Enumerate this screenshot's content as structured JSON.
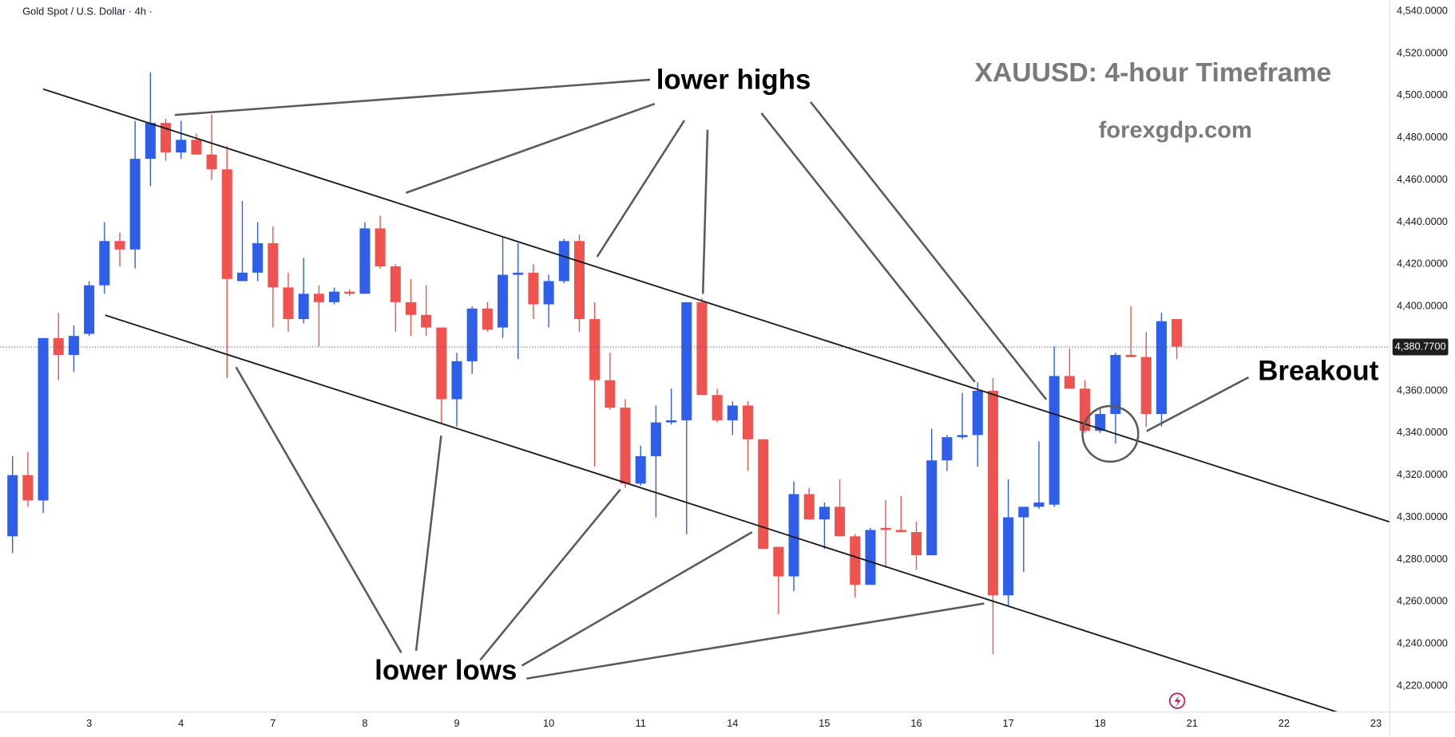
{
  "chart_data": {
    "type": "candlestick",
    "title": "XAUUSD: 4-hour Timeframe",
    "subtitle": "forexgdp.com",
    "symbol": "Gold Spot / U.S. Dollar · 4h ·",
    "annotations": [
      "lower highs",
      "lower lows",
      "Breakout"
    ],
    "up_color": "#2f5ee8",
    "down_color": "#ef5350",
    "grid": false,
    "open": [
      4291,
      4320,
      4308,
      4385,
      4377,
      4387,
      4410,
      4431,
      4427,
      4470,
      4487,
      4473,
      4479,
      4472,
      4465,
      4412,
      4416,
      4430,
      4409,
      4394,
      4406,
      4402,
      4407,
      4406,
      4437,
      4419,
      4402,
      4396,
      4390,
      4356,
      4374,
      4399,
      4390,
      4415,
      4416,
      4401,
      4412,
      4431,
      4394,
      4365,
      4352,
      4316,
      4329,
      4345,
      4346,
      4402,
      4358,
      4346,
      4353,
      4337,
      4286,
      4272,
      4311,
      4299,
      4305,
      4291,
      4268,
      4295,
      4294,
      4293,
      4282,
      4327,
      4338,
      4339,
      4360,
      4263,
      4300,
      4305,
      4306,
      4367,
      4361,
      4341,
      4349,
      4377,
      4376,
      4349,
      4394
    ],
    "high": [
      4329,
      4331,
      4385,
      4397,
      4391,
      4412,
      4440,
      4435,
      4488,
      4511,
      4489,
      4488,
      4482,
      4491,
      4476,
      4450,
      4440,
      4438,
      4416,
      4423,
      4410,
      4409,
      4408,
      4440,
      4443,
      4420,
      4413,
      4410,
      4390,
      4378,
      4400,
      4402,
      4433,
      4430,
      4420,
      4415,
      4432,
      4434,
      4402,
      4378,
      4356,
      4334,
      4353,
      4361,
      4402,
      4404,
      4361,
      4355,
      4355,
      4337,
      4286,
      4317,
      4314,
      4307,
      4318,
      4292,
      4295,
      4308,
      4310,
      4298,
      4342,
      4339,
      4359,
      4364,
      4366,
      4318,
      4305,
      4336,
      4381,
      4380,
      4365,
      4352,
      4378,
      4400,
      4388,
      4397,
      4394
    ],
    "low": [
      4283,
      4305,
      4302,
      4365,
      4369,
      4386,
      4406,
      4419,
      4418,
      4457,
      4469,
      4470,
      4472,
      4460,
      4366,
      4412,
      4412,
      4390,
      4388,
      4392,
      4381,
      4401,
      4405,
      4406,
      4418,
      4388,
      4386,
      4386,
      4344,
      4343,
      4368,
      4388,
      4385,
      4375,
      4394,
      4390,
      4411,
      4388,
      4324,
      4351,
      4314,
      4315,
      4300,
      4344,
      4292,
      4358,
      4345,
      4339,
      4322,
      4285,
      4254,
      4265,
      4299,
      4285,
      4291,
      4262,
      4268,
      4276,
      4293,
      4275,
      4282,
      4322,
      4337,
      4324,
      4235,
      4258,
      4274,
      4304,
      4305,
      4361,
      4340,
      4340,
      4335,
      4376,
      4343,
      4343,
      4375
    ],
    "close": [
      4320,
      4308,
      4385,
      4377,
      4386,
      4410,
      4431,
      4427,
      4470,
      4487,
      4473,
      4479,
      4472,
      4465,
      4413,
      4416,
      4430,
      4409,
      4394,
      4406,
      4402,
      4407,
      4406,
      4437,
      4419,
      4402,
      4396,
      4390,
      4356,
      4374,
      4399,
      4389,
      4415,
      4416,
      4401,
      4412,
      4431,
      4394,
      4365,
      4352,
      4316,
      4329,
      4345,
      4346,
      4402,
      4358,
      4346,
      4353,
      4337,
      4285,
      4272,
      4311,
      4299,
      4305,
      4291,
      4268,
      4294,
      4294,
      4293,
      4282,
      4327,
      4338,
      4339,
      4360,
      4263,
      4300,
      4305,
      4307,
      4367,
      4361,
      4341,
      4349,
      4377,
      4376,
      4349,
      4393,
      4381
    ],
    "last_price": {
      "value": 4380.77,
      "label": "4,380.7700"
    },
    "xlim": [
      -0.8,
      89.9
    ],
    "xticks": [
      {
        "value": 5,
        "label": "3"
      },
      {
        "value": 11,
        "label": "4"
      },
      {
        "value": 17,
        "label": "7"
      },
      {
        "value": 23,
        "label": "8"
      },
      {
        "value": 29,
        "label": "9"
      },
      {
        "value": 35,
        "label": "10"
      },
      {
        "value": 41,
        "label": "11"
      },
      {
        "value": 47,
        "label": "14"
      },
      {
        "value": 53,
        "label": "15"
      },
      {
        "value": 59,
        "label": "16"
      },
      {
        "value": 65,
        "label": "17"
      },
      {
        "value": 71,
        "label": "18"
      },
      {
        "value": 77,
        "label": "21"
      },
      {
        "value": 83,
        "label": "22"
      },
      {
        "value": 89,
        "label": "23"
      }
    ],
    "ylim": [
      4207.7,
      4545.3
    ],
    "yticks": [
      {
        "value": 4220,
        "label": "4,220.0000"
      },
      {
        "value": 4240,
        "label": "4,240.0000"
      },
      {
        "value": 4260,
        "label": "4,260.0000"
      },
      {
        "value": 4280,
        "label": "4,280.0000"
      },
      {
        "value": 4300,
        "label": "4,300.0000"
      },
      {
        "value": 4320,
        "label": "4,320.0000"
      },
      {
        "value": 4340,
        "label": "4,340.0000"
      },
      {
        "value": 4360,
        "label": "4,360.0000"
      },
      {
        "value": 4380,
        "label": "4,380.0000"
      },
      {
        "value": 4400,
        "label": "4,400.0000"
      },
      {
        "value": 4420,
        "label": "4,420.0000"
      },
      {
        "value": 4440,
        "label": "4,440.0000"
      },
      {
        "value": 4460,
        "label": "4,460.0000"
      },
      {
        "value": 4480,
        "label": "4,480.0000"
      },
      {
        "value": 4500,
        "label": "4,500.0000"
      },
      {
        "value": 4520,
        "label": "4,520.0000"
      },
      {
        "value": 4540,
        "label": "4,540.0000"
      }
    ]
  }
}
